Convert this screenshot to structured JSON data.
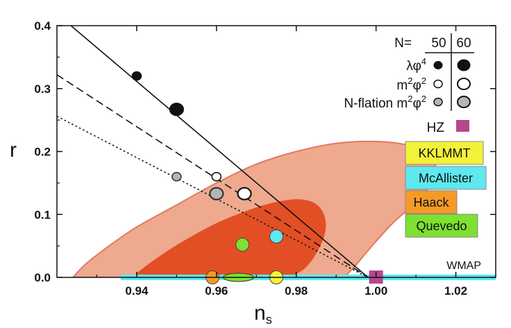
{
  "chart_data": {
    "type": "scatter",
    "xlabel_main": "n",
    "xlabel_sub": "s",
    "ylabel": "r",
    "xlim": [
      0.92,
      1.03
    ],
    "ylim": [
      0.0,
      0.4
    ],
    "xticks": [
      {
        "value": 0.94,
        "label": "0.94"
      },
      {
        "value": 0.96,
        "label": "0.96"
      },
      {
        "value": 0.98,
        "label": "0.98"
      },
      {
        "value": 1.0,
        "label": "1.00"
      },
      {
        "value": 1.02,
        "label": "1.02"
      }
    ],
    "yticks": [
      {
        "value": 0.0,
        "label": "0.0"
      },
      {
        "value": 0.1,
        "label": "0.1"
      },
      {
        "value": 0.2,
        "label": "0.2"
      },
      {
        "value": 0.3,
        "label": "0.3"
      },
      {
        "value": 0.4,
        "label": "0.4"
      }
    ],
    "contours": [
      {
        "name": "wmap-95",
        "color": "#eea98f",
        "edge": "#e07a60",
        "points": [
          [
            0.924,
            0.0
          ],
          [
            0.927,
            0.02
          ],
          [
            0.932,
            0.045
          ],
          [
            0.94,
            0.08
          ],
          [
            0.95,
            0.115
          ],
          [
            0.96,
            0.15
          ],
          [
            0.97,
            0.18
          ],
          [
            0.98,
            0.2
          ],
          [
            0.99,
            0.213
          ],
          [
            1.0,
            0.216
          ],
          [
            1.008,
            0.21
          ],
          [
            1.013,
            0.195
          ],
          [
            1.015,
            0.175
          ],
          [
            1.014,
            0.15
          ],
          [
            1.01,
            0.12
          ],
          [
            1.004,
            0.085
          ],
          [
            0.999,
            0.05
          ],
          [
            0.995,
            0.02
          ],
          [
            0.992,
            0.0
          ]
        ]
      },
      {
        "name": "wmap-68",
        "color": "#e24f25",
        "edge": "#e24f25",
        "points": [
          [
            0.939,
            0.0
          ],
          [
            0.943,
            0.02
          ],
          [
            0.95,
            0.05
          ],
          [
            0.96,
            0.085
          ],
          [
            0.97,
            0.11
          ],
          [
            0.976,
            0.12
          ],
          [
            0.981,
            0.123
          ],
          [
            0.985,
            0.115
          ],
          [
            0.987,
            0.095
          ],
          [
            0.987,
            0.07
          ],
          [
            0.985,
            0.04
          ],
          [
            0.982,
            0.015
          ],
          [
            0.978,
            0.0
          ]
        ]
      }
    ],
    "lines": [
      {
        "name": "lambda-phi4-line",
        "style": "solid",
        "points": [
          [
            0.9235,
            0.4
          ],
          [
            0.998,
            0.0
          ]
        ]
      },
      {
        "name": "m2phi2-line",
        "style": "dashed",
        "points": [
          [
            0.92,
            0.322
          ],
          [
            0.998,
            0.0
          ]
        ]
      },
      {
        "name": "nflation-line",
        "style": "dotted",
        "points": [
          [
            0.92,
            0.256
          ],
          [
            0.998,
            0.0
          ]
        ]
      }
    ],
    "series": [
      {
        "name": "lambda-phi4",
        "color": "#111111",
        "points": [
          {
            "N": 50,
            "x": 0.94,
            "y": 0.32
          },
          {
            "N": 60,
            "x": 0.95,
            "y": 0.267
          }
        ]
      },
      {
        "name": "m2-phi2",
        "color": "#ffffff",
        "points": [
          {
            "N": 50,
            "x": 0.96,
            "y": 0.16
          },
          {
            "N": 60,
            "x": 0.967,
            "y": 0.133
          }
        ]
      },
      {
        "name": "nflation-m2-phi2",
        "color": "#b5b5b5",
        "points": [
          {
            "N": 50,
            "x": 0.95,
            "y": 0.16
          },
          {
            "N": 60,
            "x": 0.96,
            "y": 0.133
          }
        ]
      }
    ],
    "models": [
      {
        "name": "kklmmt",
        "label": "KKLMMT",
        "color": "#f2f23a",
        "x": 0.975,
        "y": 0.0
      },
      {
        "name": "mcallister",
        "label": "McAllister",
        "color": "#5ee8f0",
        "x": 0.975,
        "y": 0.065
      },
      {
        "name": "haack",
        "label": "Haack",
        "color": "#f59a26",
        "x": 0.959,
        "y": 0.0
      },
      {
        "name": "quevedo",
        "label": "Quevedo",
        "color": "#7ee030",
        "x": 0.9665,
        "y": 0.052
      }
    ],
    "quevedo_ellipse": {
      "x": 0.9655,
      "y": 0.0
    },
    "hz": {
      "label": "HZ",
      "color": "#b5478c",
      "x": 1.0,
      "y": 0.0
    },
    "band": {
      "color": "#5ee8f0",
      "x_from": 0.936,
      "x_to": 1.03
    },
    "legend": {
      "header": "N=",
      "n_values": [
        "50",
        "60"
      ],
      "entries": [
        {
          "label_main": "λφ",
          "sup": "4"
        },
        {
          "label_main": "m",
          "sup": "2",
          "label_mid": "φ",
          "sup2": "2"
        },
        {
          "label_main": "N-flation m",
          "sup": "2",
          "label_mid": "φ",
          "sup2": "2"
        }
      ]
    },
    "annotation": "WMAP"
  }
}
